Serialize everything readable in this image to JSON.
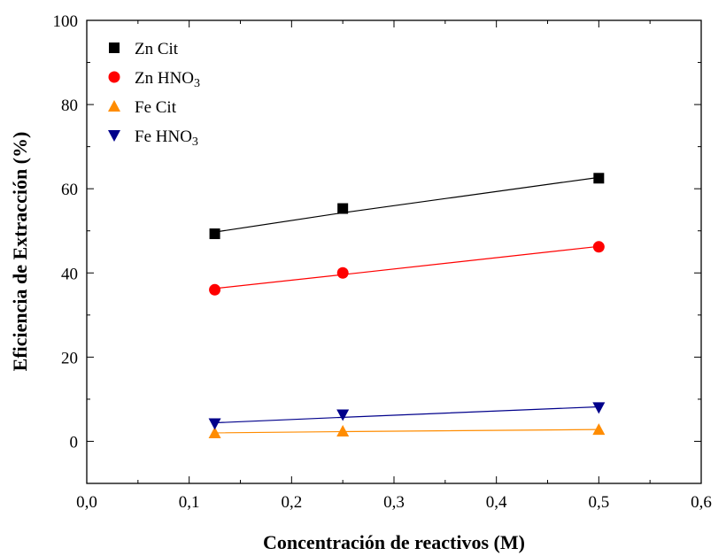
{
  "chart_data": {
    "type": "scatter",
    "xlabel": "Concentración de reactivos (M)",
    "ylabel": "Eficiencia de Extracción (%)",
    "xlim": [
      0.0,
      0.6
    ],
    "ylim": [
      -10,
      100
    ],
    "x_ticks": [
      0.0,
      0.1,
      0.2,
      0.3,
      0.4,
      0.5,
      0.6
    ],
    "x_tick_labels": [
      "0,0",
      "0,1",
      "0,2",
      "0,3",
      "0,4",
      "0,5",
      "0,6"
    ],
    "y_ticks": [
      0,
      20,
      40,
      60,
      80,
      100
    ],
    "y_tick_labels": [
      "0",
      "20",
      "40",
      "60",
      "80",
      "100"
    ],
    "grid": false,
    "legend_position": "top-left",
    "x": [
      0.125,
      0.25,
      0.5
    ],
    "series": [
      {
        "name": "Zn  Cit",
        "name_main": "Zn  Cit",
        "name_sub": "",
        "color": "#000000",
        "marker": "square",
        "values": [
          49.3,
          55.3,
          62.5
        ],
        "fit": [
          49.7,
          54.3,
          62.7
        ]
      },
      {
        "name": "Zn HNO3",
        "name_main": "Zn HNO",
        "name_sub": "3",
        "color": "#ff0000",
        "marker": "circle",
        "values": [
          36.0,
          40.0,
          46.2
        ],
        "fit": [
          36.3,
          39.6,
          46.3
        ]
      },
      {
        "name": "Fe Cit",
        "name_main": "Fe Cit",
        "name_sub": "",
        "color": "#ff8c00",
        "marker": "triangle-up",
        "values": [
          2.0,
          2.4,
          2.8
        ],
        "fit": [
          2.0,
          2.3,
          2.8
        ]
      },
      {
        "name": "Fe HNO3",
        "name_main": "Fe HNO",
        "name_sub": "3",
        "color": "#00008b",
        "marker": "triangle-down",
        "values": [
          4.2,
          6.3,
          8.0
        ],
        "fit": [
          4.4,
          5.7,
          8.2
        ]
      }
    ]
  }
}
